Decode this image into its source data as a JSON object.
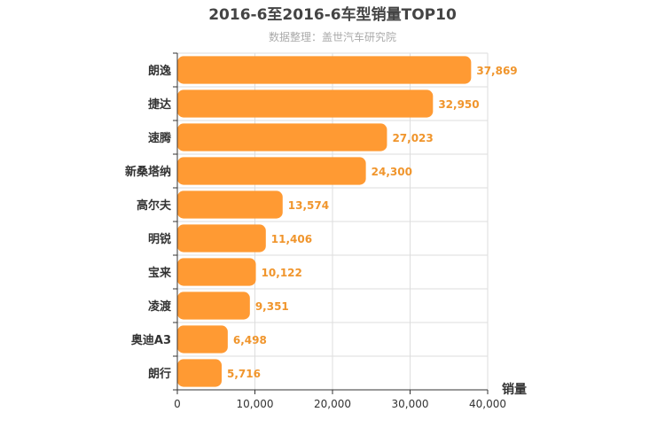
{
  "chart_data": {
    "type": "bar",
    "orientation": "horizontal",
    "title": "2016-6至2016-6车型销量TOP10",
    "subtitle": "数据整理：盖世汽车研究院",
    "xlabel": "销量",
    "ylabel": "",
    "categories": [
      "朗逸",
      "捷达",
      "速腾",
      "新桑塔纳",
      "高尔夫",
      "明锐",
      "宝来",
      "凌渡",
      "奥迪A3",
      "朗行"
    ],
    "values": [
      37869,
      32950,
      27023,
      24300,
      13574,
      11406,
      10122,
      9351,
      6498,
      5716
    ],
    "value_labels": [
      "37,869",
      "32,950",
      "27,023",
      "24,300",
      "13,574",
      "11,406",
      "10,122",
      "9,351",
      "6,498",
      "5,716"
    ],
    "xlim": [
      0,
      40000
    ],
    "xticks": [
      0,
      10000,
      20000,
      30000,
      40000
    ],
    "xtick_labels": [
      "0",
      "10,000",
      "20,000",
      "30,000",
      "40,000"
    ],
    "grid": true,
    "colors": {
      "bar": "#ff9a33",
      "value_label": "#f0952c",
      "grid": "#dddddd",
      "axis": "#333333"
    }
  }
}
